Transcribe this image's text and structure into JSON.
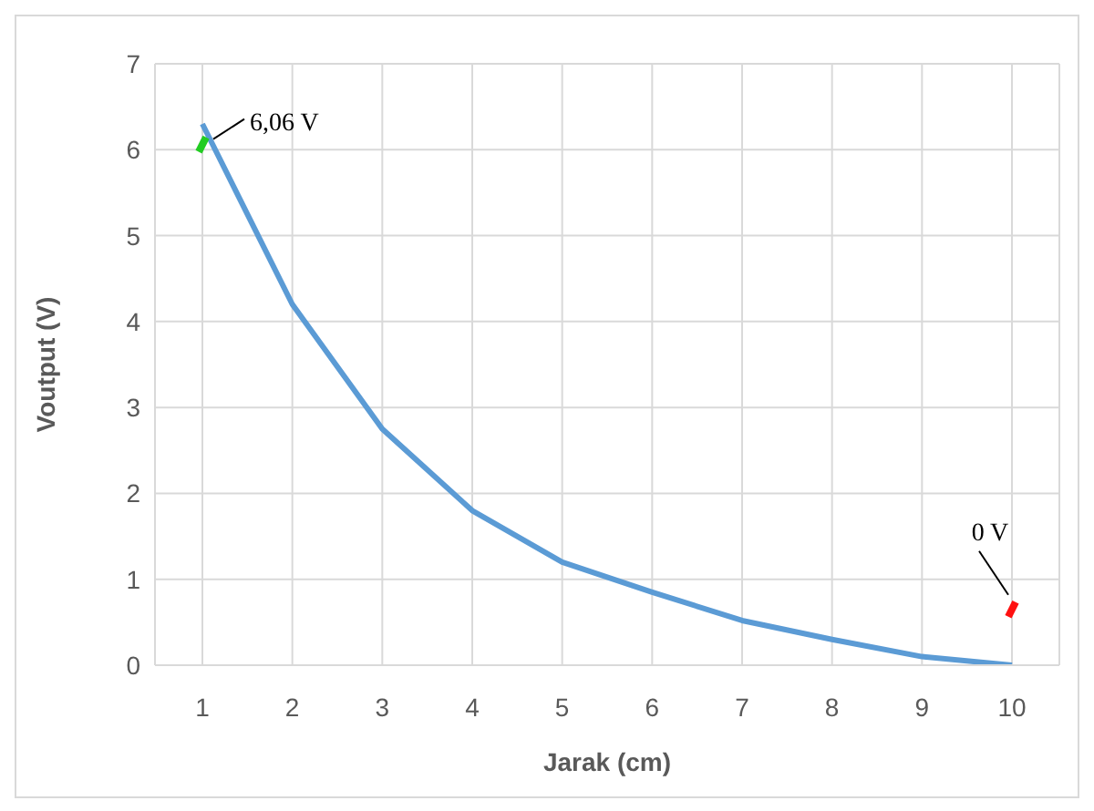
{
  "chart_data": {
    "type": "line",
    "xlabel": "Jarak (cm)",
    "ylabel": "Voutput (V)",
    "categories": [
      "1",
      "2",
      "3",
      "4",
      "5",
      "6",
      "7",
      "8",
      "9",
      "10"
    ],
    "series": [
      {
        "color": "#5b9bd5",
        "values": [
          6.3,
          4.2,
          2.75,
          1.8,
          1.2,
          0.85,
          0.52,
          0.3,
          0.1,
          0
        ]
      }
    ],
    "ylim": [
      0,
      7
    ],
    "yticks": [
      0,
      1,
      2,
      3,
      4,
      5,
      6,
      7
    ],
    "grid": true,
    "marker": "none",
    "line_style": "solid",
    "annotations": [
      {
        "text": "6,06 V",
        "x": "1",
        "y": 6.06
      },
      {
        "text": "0 V",
        "x": "10",
        "y": 0.65
      }
    ]
  }
}
